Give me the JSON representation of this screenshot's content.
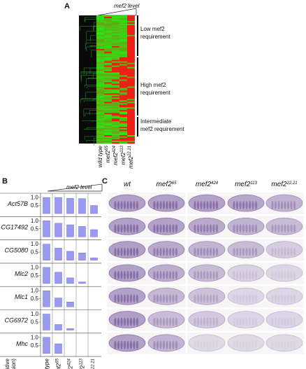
{
  "panel_a": {
    "label": "A",
    "level_label": "mef2 level",
    "columns": [
      {
        "text": "wild type"
      },
      {
        "text": "mef2",
        "sup": "65"
      },
      {
        "text": "mef2",
        "sup": "424"
      },
      {
        "text": "mef2",
        "sup": "113"
      },
      {
        "text": "mef2",
        "sup": "22.21"
      }
    ],
    "groups": [
      {
        "lines": [
          "Low mef2",
          "requirement"
        ]
      },
      {
        "lines": [
          "High mef2",
          "requirement"
        ]
      },
      {
        "lines": [
          "Intermediate",
          "mef2 requirement"
        ]
      }
    ]
  },
  "panel_b": {
    "label": "B",
    "level_label": "mef2 level",
    "ylabel_lines": [
      "(Relative",
      "expression)"
    ]
  },
  "chart_data": [
    {
      "type": "bar",
      "title": "Act57B",
      "values": [
        1.0,
        1.0,
        0.95,
        0.93,
        0.5
      ],
      "color": "#9a9af0",
      "ylim": [
        0,
        1
      ],
      "yticks": [
        0.5,
        {
          "value": 1,
          "label": "1.0"
        }
      ]
    },
    {
      "type": "bar",
      "title": "CG17492",
      "values": [
        1.0,
        0.85,
        0.75,
        0.65,
        0.45
      ],
      "color": "#9a9af0",
      "ylim": [
        0,
        1
      ],
      "yticks": [
        0.5,
        {
          "value": 1,
          "label": "1.0"
        }
      ]
    },
    {
      "type": "bar",
      "title": "CG5080",
      "values": [
        1.0,
        0.75,
        0.55,
        0.45,
        0.15
      ],
      "color": "#9a9af0",
      "ylim": [
        0,
        1
      ],
      "yticks": [
        0.5,
        {
          "value": 1,
          "label": "1.0"
        }
      ]
    },
    {
      "type": "bar",
      "title": "Mlc2",
      "values": [
        1.0,
        0.7,
        0.35,
        0.1,
        0
      ],
      "color": "#9a9af0",
      "ylim": [
        0,
        1
      ],
      "yticks": [
        0.5,
        {
          "value": 1,
          "label": "1.0"
        }
      ]
    },
    {
      "type": "bar",
      "title": "Mlc1",
      "values": [
        1.0,
        0.55,
        0.3,
        0,
        0
      ],
      "color": "#9a9af0",
      "ylim": [
        0,
        1
      ],
      "yticks": [
        0.5,
        {
          "value": 1,
          "label": "1.0"
        }
      ]
    },
    {
      "type": "bar",
      "title": "CG6972",
      "values": [
        1.0,
        0.35,
        0.1,
        0,
        0
      ],
      "color": "#9a9af0",
      "ylim": [
        0,
        1
      ],
      "yticks": [
        0.5,
        {
          "value": 1,
          "label": "1.0"
        }
      ]
    },
    {
      "type": "bar",
      "title": "Mhc",
      "values": [
        1.0,
        0.6,
        0,
        0,
        0
      ],
      "color": "#9a9af0",
      "ylim": [
        0,
        1
      ],
      "yticks": [
        0.5,
        {
          "value": 1,
          "label": "1.0"
        }
      ],
      "categories": [
        {
          "text": "wild type"
        },
        {
          "text": "mef2",
          "sup": "65"
        },
        {
          "text": "mef2",
          "sup": "424"
        },
        {
          "text": "mef2",
          "sup": "113"
        },
        {
          "text": "mef2",
          "sup": "22.21"
        }
      ]
    }
  ],
  "panel_c": {
    "label": "C",
    "columns": [
      {
        "text": "wt"
      },
      {
        "text": "mef2",
        "sup": "65"
      },
      {
        "text": "mef2",
        "sup": "424"
      },
      {
        "text": "mef2",
        "sup": "113"
      },
      {
        "text": "mef2",
        "sup": "22.21"
      }
    ]
  }
}
